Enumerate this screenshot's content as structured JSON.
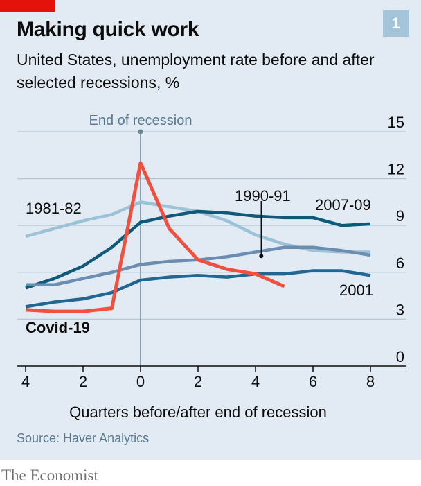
{
  "header": {
    "title": "Making quick work",
    "subtitle": "United States, unemployment rate before and after selected recessions, %",
    "badge": "1"
  },
  "footer": {
    "source": "Source: Haver Analytics",
    "brand": "The Economist"
  },
  "colors": {
    "background": "#e2ebf3",
    "red_tag": "#e3120b",
    "covid": "#f1503f",
    "dark_blue": "#0f5a78",
    "mid_blue": "#226792",
    "slate_blue": "#6a8db1",
    "light_blue": "#9cc2d8",
    "grid": "#b4c6d3"
  },
  "chart_data": {
    "type": "line",
    "xlabel": "Quarters before/after end of recession",
    "ylabel": "",
    "xlim": [
      -4,
      8
    ],
    "ylim": [
      0,
      15
    ],
    "x_ticks": [
      "4",
      "2",
      "0",
      "2",
      "4",
      "6",
      "8"
    ],
    "y_ticks": [
      "0",
      "3",
      "6",
      "9",
      "12",
      "15"
    ],
    "annotation": "End of recession",
    "annotation_x": 0,
    "x": [
      -4,
      -3,
      -2,
      -1,
      0,
      1,
      2,
      3,
      4,
      5,
      6,
      7,
      8
    ],
    "series": [
      {
        "name": "1981-82",
        "color": "#9cc2d8",
        "values": [
          8.3,
          8.8,
          9.3,
          9.7,
          10.5,
          10.2,
          9.9,
          9.3,
          8.4,
          7.8,
          7.4,
          7.3,
          7.3
        ]
      },
      {
        "name": "2007-09",
        "color": "#0f5a78",
        "values": [
          5.0,
          5.6,
          6.4,
          7.6,
          9.2,
          9.6,
          9.9,
          9.8,
          9.6,
          9.5,
          9.5,
          9.0,
          9.1
        ]
      },
      {
        "name": "1990-91",
        "color": "#6a8db1",
        "values": [
          5.2,
          5.2,
          5.6,
          6.0,
          6.5,
          6.7,
          6.8,
          7.0,
          7.3,
          7.6,
          7.6,
          7.4,
          7.1
        ]
      },
      {
        "name": "2001",
        "color": "#226792",
        "values": [
          3.8,
          4.1,
          4.3,
          4.7,
          5.5,
          5.7,
          5.8,
          5.7,
          5.9,
          5.9,
          6.1,
          6.1,
          5.8
        ]
      },
      {
        "name": "Covid-19",
        "color": "#f1503f",
        "values": [
          3.6,
          3.5,
          3.5,
          3.7,
          13.0,
          8.8,
          6.8,
          6.2,
          5.9,
          5.1,
          null,
          null,
          null
        ]
      }
    ]
  }
}
